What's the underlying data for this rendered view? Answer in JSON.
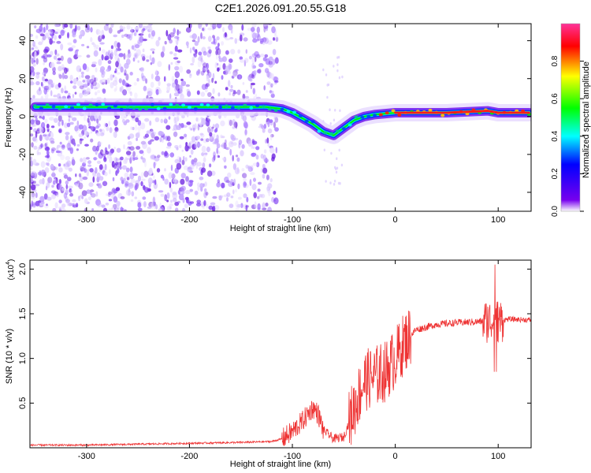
{
  "title": "C2E1.2026.091.20.55.G18",
  "chart_data": [
    {
      "type": "heatmap",
      "xlabel": "Height of straight line (km)",
      "ylabel": "Frequency (Hz)",
      "xlim": [
        -355,
        132
      ],
      "ylim": [
        -50,
        49
      ],
      "xticks": [
        -300,
        -200,
        -100,
        0,
        100
      ],
      "yticks": [
        -40,
        -20,
        0,
        20,
        40
      ],
      "colorbar": {
        "label": "Normalized spectral amplitude",
        "range": [
          0,
          1
        ],
        "ticks": [
          "0.0",
          "0.2",
          "0.4",
          "0.6",
          "0.8"
        ],
        "colors": [
          "#ffffff",
          "#7700ee",
          "#0000ff",
          "#00ffff",
          "#00ff00",
          "#ffff00",
          "#ff0000",
          "#ff3399"
        ]
      },
      "ridge": [
        {
          "x": -350,
          "y": 5
        },
        {
          "x": -300,
          "y": 5
        },
        {
          "x": -250,
          "y": 5
        },
        {
          "x": -200,
          "y": 5
        },
        {
          "x": -150,
          "y": 5
        },
        {
          "x": -125,
          "y": 5
        },
        {
          "x": -110,
          "y": 4
        },
        {
          "x": -100,
          "y": 2
        },
        {
          "x": -90,
          "y": -1
        },
        {
          "x": -80,
          "y": -4
        },
        {
          "x": -70,
          "y": -8
        },
        {
          "x": -60,
          "y": -10
        },
        {
          "x": -50,
          "y": -6
        },
        {
          "x": -40,
          "y": -2
        },
        {
          "x": -30,
          "y": 0
        },
        {
          "x": -20,
          "y": 1
        },
        {
          "x": 0,
          "y": 2
        },
        {
          "x": 50,
          "y": 2
        },
        {
          "x": 90,
          "y": 3
        },
        {
          "x": 100,
          "y": 2
        },
        {
          "x": 130,
          "y": 2
        }
      ]
    },
    {
      "type": "line",
      "xlabel": "Height of straight line (km)",
      "ylabel": "SNR (10 * v/v)",
      "yscale_label": "(x10",
      "yscale_exp": "4",
      "yscale_close": ")",
      "xlim": [
        -355,
        132
      ],
      "ylim": [
        0,
        2.1
      ],
      "xticks": [
        -300,
        -200,
        -100,
        0,
        100
      ],
      "yticks": [
        "0.5",
        "1.0",
        "1.5",
        "2.0"
      ],
      "color": "#ee3333",
      "series": [
        {
          "points": [
            {
              "x": -355,
              "y": 0.03
            },
            {
              "x": -300,
              "y": 0.03
            },
            {
              "x": -250,
              "y": 0.04
            },
            {
              "x": -200,
              "y": 0.05
            },
            {
              "x": -150,
              "y": 0.06
            },
            {
              "x": -120,
              "y": 0.07
            },
            {
              "x": -110,
              "y": 0.1
            },
            {
              "x": -100,
              "y": 0.18
            },
            {
              "x": -90,
              "y": 0.3
            },
            {
              "x": -80,
              "y": 0.45
            },
            {
              "x": -75,
              "y": 0.38
            },
            {
              "x": -70,
              "y": 0.2
            },
            {
              "x": -60,
              "y": 0.1
            },
            {
              "x": -50,
              "y": 0.12
            },
            {
              "x": -40,
              "y": 0.45
            },
            {
              "x": -30,
              "y": 0.75
            },
            {
              "x": -20,
              "y": 0.8
            },
            {
              "x": -10,
              "y": 0.85
            },
            {
              "x": 0,
              "y": 1.0
            },
            {
              "x": 10,
              "y": 1.2
            },
            {
              "x": 20,
              "y": 1.32
            },
            {
              "x": 40,
              "y": 1.38
            },
            {
              "x": 60,
              "y": 1.4
            },
            {
              "x": 80,
              "y": 1.41
            },
            {
              "x": 90,
              "y": 1.42
            },
            {
              "x": 100,
              "y": 1.42
            },
            {
              "x": 110,
              "y": 1.44
            },
            {
              "x": 132,
              "y": 1.43
            }
          ]
        }
      ]
    }
  ]
}
